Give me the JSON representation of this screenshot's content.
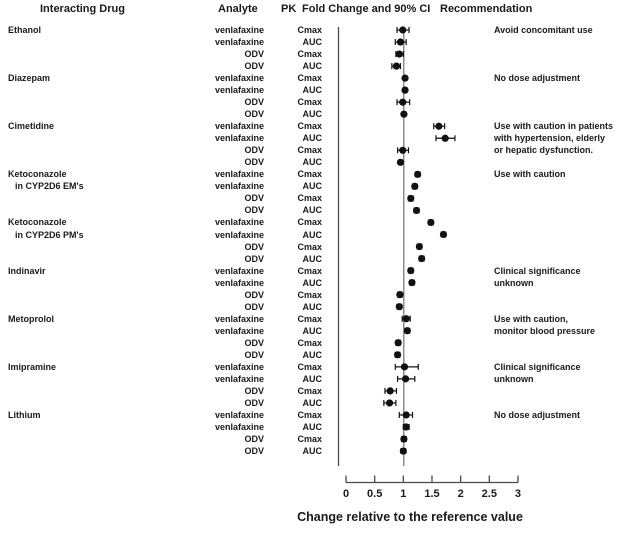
{
  "header": {
    "interacting_drug": "Interacting Drug",
    "analyte": "Analyte",
    "pk": "PK",
    "fold_change": "Fold Change and 90% CI",
    "recommendation": "Recommendation"
  },
  "axis": {
    "label": "Change relative to the reference value",
    "min": 0,
    "max": 3,
    "reference": 1,
    "ticks": [
      0,
      0.5,
      1,
      1.5,
      2,
      2.5,
      3
    ],
    "tick_labels": [
      "0",
      "0.5",
      "1",
      "1.5",
      "2",
      "2.5",
      "3"
    ]
  },
  "colors": {
    "ink": "#1a1a1a",
    "marker": "#111111",
    "axis": "#4a4a4a",
    "reference_line": "#555555"
  },
  "chart_data": {
    "type": "scatter",
    "subtype": "forest-plot",
    "title": "PK Fold Change and 90% CI",
    "xlabel": "Change relative to the reference value",
    "xlim": [
      0,
      3
    ],
    "reference_value": 1,
    "grid": false,
    "groups": [
      {
        "drug": [
          "Ethanol"
        ],
        "recommendation": [
          "Avoid concomitant use"
        ],
        "rows": [
          {
            "analyte": "venlafaxine",
            "pk": "Cmax",
            "value": 0.99,
            "ci": [
              0.89,
              1.1
            ]
          },
          {
            "analyte": "venlafaxine",
            "pk": "AUC",
            "value": 0.95,
            "ci": [
              0.86,
              1.05
            ]
          },
          {
            "analyte": "ODV",
            "pk": "Cmax",
            "value": 0.93,
            "ci": [
              0.87,
              1.0
            ]
          },
          {
            "analyte": "ODV",
            "pk": "AUC",
            "value": 0.88,
            "ci": [
              0.8,
              0.95
            ]
          }
        ]
      },
      {
        "drug": [
          "Diazepam"
        ],
        "recommendation": [
          "No dose adjustment"
        ],
        "rows": [
          {
            "analyte": "venlafaxine",
            "pk": "Cmax",
            "value": 1.03,
            "ci": [
              1.0,
              1.06
            ]
          },
          {
            "analyte": "venlafaxine",
            "pk": "AUC",
            "value": 1.03,
            "ci": [
              1.0,
              1.06
            ]
          },
          {
            "analyte": "ODV",
            "pk": "Cmax",
            "value": 0.99,
            "ci": [
              0.89,
              1.11
            ]
          },
          {
            "analyte": "ODV",
            "pk": "AUC",
            "value": 1.01,
            "ci": [
              0.98,
              1.04
            ]
          }
        ]
      },
      {
        "drug": [
          "Cimetidine"
        ],
        "recommendation": [
          "Use with caution in patients",
          "with hypertension, elderly",
          "or hepatic dysfunction."
        ],
        "rows": [
          {
            "analyte": "venlafaxine",
            "pk": "Cmax",
            "value": 1.62,
            "ci": [
              1.53,
              1.72
            ]
          },
          {
            "analyte": "venlafaxine",
            "pk": "AUC",
            "value": 1.73,
            "ci": [
              1.57,
              1.9
            ]
          },
          {
            "analyte": "ODV",
            "pk": "Cmax",
            "value": 0.99,
            "ci": [
              0.9,
              1.09
            ]
          },
          {
            "analyte": "ODV",
            "pk": "AUC",
            "value": 0.95,
            "ci": [
              0.92,
              0.98
            ]
          }
        ]
      },
      {
        "drug": [
          "Ketoconazole",
          "in CYP2D6 EM's"
        ],
        "recommendation": [
          "Use with caution"
        ],
        "rows": [
          {
            "analyte": "venlafaxine",
            "pk": "Cmax",
            "value": 1.25,
            "ci": [
              1.21,
              1.29
            ]
          },
          {
            "analyte": "venlafaxine",
            "pk": "AUC",
            "value": 1.2,
            "ci": [
              1.16,
              1.24
            ]
          },
          {
            "analyte": "ODV",
            "pk": "Cmax",
            "value": 1.13,
            "ci": [
              1.09,
              1.17
            ]
          },
          {
            "analyte": "ODV",
            "pk": "AUC",
            "value": 1.23,
            "ci": [
              1.19,
              1.27
            ]
          }
        ]
      },
      {
        "drug": [
          "Ketoconazole",
          "in CYP2D6 PM's"
        ],
        "recommendation": [],
        "rows": [
          {
            "analyte": "venlafaxine",
            "pk": "Cmax",
            "value": 1.48,
            "ci": [
              1.44,
              1.52
            ]
          },
          {
            "analyte": "venlafaxine",
            "pk": "AUC",
            "value": 1.7,
            "ci": [
              1.66,
              1.74
            ]
          },
          {
            "analyte": "ODV",
            "pk": "Cmax",
            "value": 1.28,
            "ci": [
              1.24,
              1.32
            ]
          },
          {
            "analyte": "ODV",
            "pk": "AUC",
            "value": 1.32,
            "ci": [
              1.28,
              1.36
            ]
          }
        ]
      },
      {
        "drug": [
          "Indinavir"
        ],
        "recommendation": [
          "Clinical significance",
          "unknown"
        ],
        "rows": [
          {
            "analyte": "venlafaxine",
            "pk": "Cmax",
            "value": 1.13,
            "ci": [
              1.09,
              1.17
            ]
          },
          {
            "analyte": "venlafaxine",
            "pk": "AUC",
            "value": 1.15,
            "ci": [
              1.11,
              1.19
            ]
          },
          {
            "analyte": "ODV",
            "pk": "Cmax",
            "value": 0.94,
            "ci": [
              0.9,
              0.98
            ]
          },
          {
            "analyte": "ODV",
            "pk": "AUC",
            "value": 0.93,
            "ci": [
              0.89,
              0.97
            ]
          }
        ]
      },
      {
        "drug": [
          "Metoprolol"
        ],
        "recommendation": [
          "Use with caution,",
          "monitor blood pressure"
        ],
        "rows": [
          {
            "analyte": "venlafaxine",
            "pk": "Cmax",
            "value": 1.05,
            "ci": [
              0.98,
              1.12
            ]
          },
          {
            "analyte": "venlafaxine",
            "pk": "AUC",
            "value": 1.07,
            "ci": [
              1.03,
              1.11
            ]
          },
          {
            "analyte": "ODV",
            "pk": "Cmax",
            "value": 0.91,
            "ci": [
              0.87,
              0.95
            ]
          },
          {
            "analyte": "ODV",
            "pk": "AUC",
            "value": 0.9,
            "ci": [
              0.86,
              0.94
            ]
          }
        ]
      },
      {
        "drug": [
          "Imipramine"
        ],
        "recommendation": [
          "Clinical significance",
          "unknown"
        ],
        "rows": [
          {
            "analyte": "venlafaxine",
            "pk": "Cmax",
            "value": 1.02,
            "ci": [
              0.86,
              1.26
            ]
          },
          {
            "analyte": "venlafaxine",
            "pk": "AUC",
            "value": 1.04,
            "ci": [
              0.9,
              1.2
            ]
          },
          {
            "analyte": "ODV",
            "pk": "Cmax",
            "value": 0.77,
            "ci": [
              0.68,
              0.88
            ]
          },
          {
            "analyte": "ODV",
            "pk": "AUC",
            "value": 0.76,
            "ci": [
              0.66,
              0.87
            ]
          }
        ]
      },
      {
        "drug": [
          "Lithium"
        ],
        "recommendation": [
          "No dose adjustment"
        ],
        "rows": [
          {
            "analyte": "venlafaxine",
            "pk": "Cmax",
            "value": 1.05,
            "ci": [
              0.93,
              1.16
            ]
          },
          {
            "analyte": "venlafaxine",
            "pk": "AUC",
            "value": 1.05,
            "ci": [
              1.0,
              1.1
            ]
          },
          {
            "analyte": "ODV",
            "pk": "Cmax",
            "value": 1.01,
            "ci": [
              0.97,
              1.05
            ]
          },
          {
            "analyte": "ODV",
            "pk": "AUC",
            "value": 1.0,
            "ci": [
              0.96,
              1.04
            ]
          }
        ]
      }
    ]
  }
}
